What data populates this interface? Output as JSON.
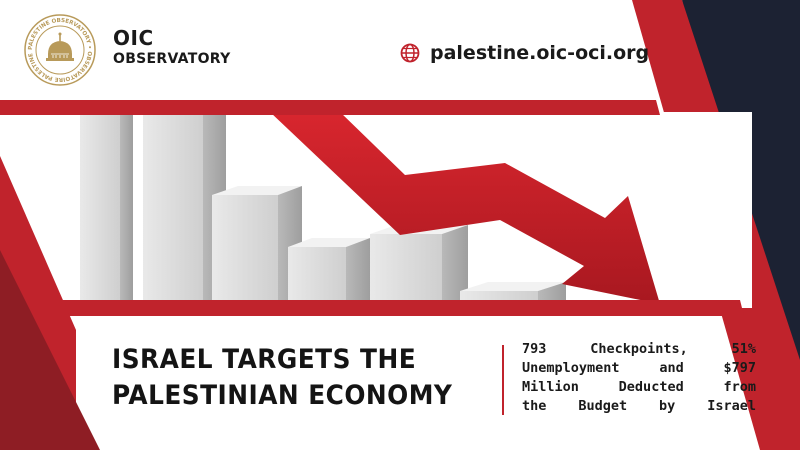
{
  "brand": {
    "org_line1": "OIC",
    "org_line2": "OBSERVATORY",
    "logo_ring_text": "PALESTINE OBSERVATORY • OBSERVATOIRE PALESTINE •",
    "website": "palestine.oic-oci.org"
  },
  "headline": {
    "line1": "ISRAEL TARGETS THE",
    "line2": "PALESTINIAN ECONOMY"
  },
  "subtitle": {
    "line1": "793 Checkpoints, 51%",
    "line2": "Unemployment and $797",
    "line3": "Million Deducted from",
    "line4": "the Budget by Israel"
  },
  "colors": {
    "accent_red": "#c0232c",
    "dark_red": "#8e1d24",
    "navy": "#1c2233",
    "gold": "#b89a5a"
  },
  "icons": {
    "logo": "dome-of-the-rock-seal",
    "website": "globe-icon",
    "graphic": "declining-bar-chart-with-red-arrow"
  }
}
